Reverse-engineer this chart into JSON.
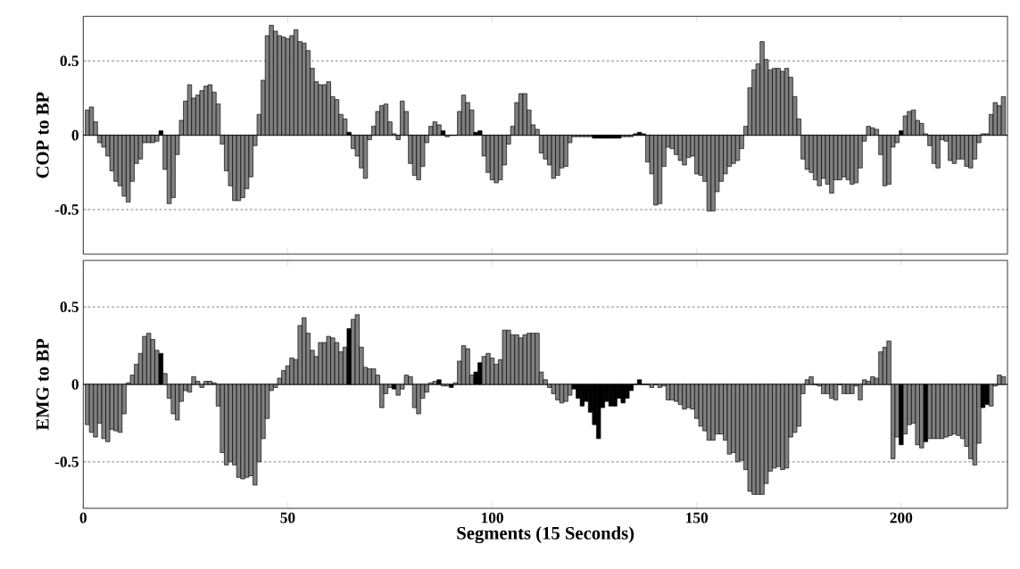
{
  "chart_data": [
    {
      "type": "bar",
      "ylabel": "COP to BP",
      "xlim": [
        0,
        226
      ],
      "xticks": [
        0,
        50,
        100,
        150,
        200
      ],
      "ylim": [
        -0.8,
        0.8
      ],
      "yticks": [
        -0.5,
        0,
        0.5
      ],
      "grid": "y",
      "tick_labels": "y",
      "ref_lines": [
        {
          "axis": "y",
          "value": 0,
          "color": "#000000"
        }
      ],
      "x": [
        1,
        2,
        3,
        4,
        5,
        6,
        7,
        8,
        9,
        10,
        11,
        12,
        13,
        14,
        15,
        16,
        17,
        18,
        19,
        20,
        21,
        22,
        23,
        24,
        25,
        26,
        27,
        28,
        29,
        30,
        31,
        32,
        33,
        34,
        35,
        36,
        37,
        38,
        39,
        40,
        41,
        42,
        43,
        44,
        45,
        46,
        47,
        48,
        49,
        50,
        51,
        52,
        53,
        54,
        55,
        56,
        57,
        58,
        59,
        60,
        61,
        62,
        63,
        64,
        65,
        66,
        67,
        68,
        69,
        70,
        71,
        72,
        73,
        74,
        75,
        76,
        77,
        78,
        79,
        80,
        81,
        82,
        83,
        84,
        85,
        86,
        87,
        88,
        89,
        90,
        91,
        92,
        93,
        94,
        95,
        96,
        97,
        98,
        99,
        100,
        101,
        102,
        103,
        104,
        105,
        106,
        107,
        108,
        109,
        110,
        111,
        112,
        113,
        114,
        115,
        116,
        117,
        118,
        119,
        120,
        121,
        122,
        123,
        124,
        125,
        126,
        127,
        128,
        129,
        130,
        131,
        132,
        133,
        134,
        135,
        136,
        137,
        138,
        139,
        140,
        141,
        142,
        143,
        144,
        145,
        146,
        147,
        148,
        149,
        150,
        151,
        152,
        153,
        154,
        155,
        156,
        157,
        158,
        159,
        160,
        161,
        162,
        163,
        164,
        165,
        166,
        167,
        168,
        169,
        170,
        171,
        172,
        173,
        174,
        175,
        176,
        177,
        178,
        179,
        180,
        181,
        182,
        183,
        184,
        185,
        186,
        187,
        188,
        189,
        190,
        191,
        192,
        193,
        194,
        195,
        196,
        197,
        198,
        199,
        200,
        201,
        202,
        203,
        204,
        205,
        206,
        207,
        208,
        209,
        210,
        211,
        212,
        213,
        214,
        215,
        216,
        217,
        218,
        219,
        220,
        221,
        222,
        223,
        224,
        225
      ],
      "values": [
        0.17,
        0.19,
        0.09,
        -0.05,
        -0.08,
        -0.14,
        -0.24,
        -0.31,
        -0.34,
        -0.41,
        -0.45,
        -0.31,
        -0.19,
        -0.16,
        -0.05,
        -0.05,
        -0.05,
        -0.04,
        0.03,
        -0.23,
        -0.46,
        -0.42,
        -0.13,
        0.1,
        0.23,
        0.34,
        0.25,
        0.27,
        0.3,
        0.33,
        0.34,
        0.29,
        0.21,
        -0.06,
        -0.24,
        -0.34,
        -0.44,
        -0.44,
        -0.42,
        -0.36,
        -0.28,
        -0.07,
        0.14,
        0.37,
        0.67,
        0.74,
        0.7,
        0.67,
        0.66,
        0.65,
        0.67,
        0.71,
        0.63,
        0.62,
        0.57,
        0.45,
        0.36,
        0.34,
        0.34,
        0.36,
        0.26,
        0.24,
        0.14,
        0.11,
        0.02,
        -0.09,
        -0.14,
        -0.22,
        -0.29,
        -0.03,
        0.06,
        0.16,
        0.2,
        0.21,
        0.09,
        0.01,
        -0.03,
        0.23,
        0.16,
        -0.19,
        -0.27,
        -0.3,
        -0.21,
        -0.05,
        0.06,
        0.09,
        0.07,
        0.03,
        -0.01,
        0,
        0,
        0.16,
        0.27,
        0.22,
        0.17,
        0.02,
        0.03,
        -0.14,
        -0.25,
        -0.3,
        -0.32,
        -0.3,
        -0.2,
        -0.06,
        0.06,
        0.22,
        0.28,
        0.28,
        0.17,
        0.07,
        0.04,
        -0.12,
        -0.16,
        -0.2,
        -0.29,
        -0.27,
        -0.22,
        -0.21,
        -0.05,
        -0.01,
        -0.01,
        -0.01,
        -0.01,
        -0.01,
        -0.02,
        -0.02,
        -0.02,
        -0.02,
        -0.02,
        -0.02,
        -0.02,
        -0.01,
        -0.01,
        -0.01,
        0.01,
        0.02,
        0.01,
        -0.18,
        -0.26,
        -0.47,
        -0.46,
        -0.21,
        -0.08,
        -0.09,
        -0.13,
        -0.17,
        -0.2,
        -0.15,
        -0.14,
        -0.26,
        -0.27,
        -0.31,
        -0.51,
        -0.51,
        -0.38,
        -0.31,
        -0.26,
        -0.21,
        -0.19,
        -0.17,
        -0.09,
        0.06,
        0.32,
        0.44,
        0.48,
        0.63,
        0.51,
        0.44,
        0.45,
        0.45,
        0.43,
        0.45,
        0.39,
        0.26,
        0.11,
        -0.16,
        -0.23,
        -0.25,
        -0.3,
        -0.34,
        -0.29,
        -0.33,
        -0.39,
        -0.3,
        -0.3,
        -0.28,
        -0.3,
        -0.33,
        -0.32,
        -0.22,
        -0.04,
        0.06,
        0.05,
        0.04,
        -0.13,
        -0.34,
        -0.33,
        -0.08,
        -0.05,
        0.03,
        0.13,
        0.16,
        0.17,
        0.1,
        0.08,
        0.01,
        -0.07,
        -0.19,
        -0.22,
        -0.03,
        -0.04,
        -0.17,
        -0.19,
        -0.16,
        -0.16,
        -0.21,
        -0.22,
        -0.16,
        -0.05,
        0.01,
        0.01,
        0.14,
        0.22,
        0.2,
        0.26
      ],
      "colors": [
        "#808080",
        "#808080",
        "#808080",
        "#808080",
        "#808080",
        "#808080",
        "#808080",
        "#808080",
        "#808080",
        "#808080",
        "#808080",
        "#808080",
        "#808080",
        "#808080",
        "#808080",
        "#808080",
        "#808080",
        "#808080",
        "#000000",
        "#808080",
        "#808080",
        "#808080",
        "#808080",
        "#808080",
        "#808080",
        "#808080",
        "#808080",
        "#808080",
        "#808080",
        "#808080",
        "#808080",
        "#808080",
        "#808080",
        "#808080",
        "#808080",
        "#808080",
        "#808080",
        "#808080",
        "#808080",
        "#808080",
        "#808080",
        "#808080",
        "#808080",
        "#808080",
        "#808080",
        "#808080",
        "#808080",
        "#808080",
        "#808080",
        "#808080",
        "#808080",
        "#808080",
        "#808080",
        "#808080",
        "#808080",
        "#808080",
        "#808080",
        "#808080",
        "#808080",
        "#808080",
        "#808080",
        "#808080",
        "#808080",
        "#808080",
        "#000000",
        "#808080",
        "#808080",
        "#808080",
        "#808080",
        "#808080",
        "#808080",
        "#808080",
        "#808080",
        "#808080",
        "#808080",
        "#808080",
        "#808080",
        "#808080",
        "#808080",
        "#808080",
        "#808080",
        "#808080",
        "#808080",
        "#808080",
        "#808080",
        "#808080",
        "#808080",
        "#000000",
        "#808080",
        "#808080",
        "#808080",
        "#808080",
        "#808080",
        "#808080",
        "#808080",
        "#000000",
        "#000000",
        "#808080",
        "#808080",
        "#808080",
        "#808080",
        "#808080",
        "#808080",
        "#808080",
        "#808080",
        "#808080",
        "#808080",
        "#808080",
        "#808080",
        "#808080",
        "#808080",
        "#808080",
        "#808080",
        "#808080",
        "#808080",
        "#808080",
        "#808080",
        "#808080",
        "#808080",
        "#808080",
        "#808080",
        "#808080",
        "#808080",
        "#808080",
        "#000000",
        "#000000",
        "#000000",
        "#000000",
        "#000000",
        "#000000",
        "#000000",
        "#808080",
        "#808080",
        "#808080",
        "#000000",
        "#000000",
        "#000000",
        "#808080",
        "#808080",
        "#808080",
        "#808080",
        "#808080",
        "#808080",
        "#808080",
        "#808080",
        "#808080",
        "#808080",
        "#808080",
        "#808080",
        "#808080",
        "#808080",
        "#808080",
        "#808080",
        "#808080",
        "#808080",
        "#808080",
        "#808080",
        "#808080",
        "#808080",
        "#808080",
        "#808080",
        "#808080",
        "#808080",
        "#808080",
        "#808080",
        "#808080",
        "#808080",
        "#808080",
        "#808080",
        "#808080",
        "#808080",
        "#808080",
        "#808080",
        "#808080",
        "#808080",
        "#808080",
        "#808080",
        "#808080",
        "#808080",
        "#808080",
        "#808080",
        "#808080",
        "#808080",
        "#808080",
        "#808080",
        "#808080",
        "#808080",
        "#808080",
        "#808080",
        "#808080",
        "#808080",
        "#808080",
        "#808080",
        "#808080",
        "#808080",
        "#808080",
        "#808080",
        "#808080",
        "#808080",
        "#000000",
        "#808080",
        "#808080",
        "#808080",
        "#808080",
        "#808080",
        "#808080",
        "#808080",
        "#808080",
        "#808080",
        "#808080",
        "#808080",
        "#808080",
        "#808080",
        "#808080",
        "#808080",
        "#808080",
        "#808080",
        "#808080",
        "#808080",
        "#808080",
        "#808080",
        "#808080",
        "#808080",
        "#808080",
        "#808080"
      ]
    },
    {
      "type": "bar",
      "ylabel": "EMG to BP",
      "xlabel": "Segments (15 Seconds)",
      "xlim": [
        0,
        226
      ],
      "xticks": [
        0,
        50,
        100,
        150,
        200
      ],
      "ylim": [
        -0.8,
        0.8
      ],
      "yticks": [
        -0.5,
        0,
        0.5
      ],
      "grid": "y",
      "ref_lines": [
        {
          "axis": "y",
          "value": 0,
          "color": "#000000"
        }
      ],
      "x": [
        1,
        2,
        3,
        4,
        5,
        6,
        7,
        8,
        9,
        10,
        11,
        12,
        13,
        14,
        15,
        16,
        17,
        18,
        19,
        20,
        21,
        22,
        23,
        24,
        25,
        26,
        27,
        28,
        29,
        30,
        31,
        32,
        33,
        34,
        35,
        36,
        37,
        38,
        39,
        40,
        41,
        42,
        43,
        44,
        45,
        46,
        47,
        48,
        49,
        50,
        51,
        52,
        53,
        54,
        55,
        56,
        57,
        58,
        59,
        60,
        61,
        62,
        63,
        64,
        65,
        66,
        67,
        68,
        69,
        70,
        71,
        72,
        73,
        74,
        75,
        76,
        77,
        78,
        79,
        80,
        81,
        82,
        83,
        84,
        85,
        86,
        87,
        88,
        89,
        90,
        91,
        92,
        93,
        94,
        95,
        96,
        97,
        98,
        99,
        100,
        101,
        102,
        103,
        104,
        105,
        106,
        107,
        108,
        109,
        110,
        111,
        112,
        113,
        114,
        115,
        116,
        117,
        118,
        119,
        120,
        121,
        122,
        123,
        124,
        125,
        126,
        127,
        128,
        129,
        130,
        131,
        132,
        133,
        134,
        135,
        136,
        137,
        138,
        139,
        140,
        141,
        142,
        143,
        144,
        145,
        146,
        147,
        148,
        149,
        150,
        151,
        152,
        153,
        154,
        155,
        156,
        157,
        158,
        159,
        160,
        161,
        162,
        163,
        164,
        165,
        166,
        167,
        168,
        169,
        170,
        171,
        172,
        173,
        174,
        175,
        176,
        177,
        178,
        179,
        180,
        181,
        182,
        183,
        184,
        185,
        186,
        187,
        188,
        189,
        190,
        191,
        192,
        193,
        194,
        195,
        196,
        197,
        198,
        199,
        200,
        201,
        202,
        203,
        204,
        205,
        206,
        207,
        208,
        209,
        210,
        211,
        212,
        213,
        214,
        215,
        216,
        217,
        218,
        219,
        220,
        221,
        222,
        223,
        224,
        225
      ],
      "values": [
        -0.26,
        -0.31,
        -0.34,
        -0.25,
        -0.35,
        -0.37,
        -0.29,
        -0.3,
        -0.31,
        -0.19,
        0.01,
        0.06,
        0.13,
        0.2,
        0.31,
        0.33,
        0.29,
        0.22,
        0.2,
        0.07,
        -0.09,
        -0.19,
        -0.23,
        -0.11,
        -0.04,
        -0.05,
        0.05,
        0.02,
        -0.02,
        0.02,
        0.02,
        0.01,
        -0.14,
        -0.44,
        -0.52,
        -0.5,
        -0.52,
        -0.6,
        -0.61,
        -0.6,
        -0.59,
        -0.65,
        -0.5,
        -0.35,
        -0.22,
        -0.04,
        -0.02,
        0.04,
        0.09,
        0.12,
        0.17,
        0.16,
        0.38,
        0.43,
        0.33,
        0.22,
        0.18,
        0.27,
        0.27,
        0.31,
        0.3,
        0.27,
        0.21,
        0.24,
        0.36,
        0.42,
        0.45,
        0.24,
        0.11,
        0.1,
        0.1,
        0.06,
        -0.15,
        -0.06,
        -0.02,
        -0.03,
        -0.07,
        -0.03,
        0.06,
        0.05,
        -0.15,
        -0.19,
        -0.09,
        -0.05,
        0.01,
        0.02,
        0.03,
        -0.01,
        -0.01,
        -0.02,
        0.01,
        0.15,
        0.25,
        0.23,
        0.06,
        0.08,
        0.14,
        0.18,
        0.2,
        0.17,
        0.13,
        0.16,
        0.35,
        0.35,
        0.32,
        0.32,
        0.3,
        0.32,
        0.33,
        0.33,
        0.33,
        0.08,
        0.03,
        -0.02,
        -0.06,
        -0.1,
        -0.12,
        -0.11,
        -0.07,
        -0.03,
        -0.09,
        -0.14,
        -0.11,
        -0.18,
        -0.26,
        -0.35,
        -0.15,
        -0.11,
        -0.14,
        -0.14,
        -0.09,
        -0.12,
        -0.09,
        -0.04,
        0,
        0.03,
        0,
        0,
        -0.02,
        0,
        -0.02,
        -0.01,
        -0.1,
        -0.1,
        -0.11,
        -0.13,
        -0.16,
        -0.15,
        -0.16,
        -0.22,
        -0.27,
        -0.3,
        -0.36,
        -0.36,
        -0.32,
        -0.32,
        -0.36,
        -0.45,
        -0.44,
        -0.5,
        -0.49,
        -0.55,
        -0.69,
        -0.71,
        -0.71,
        -0.71,
        -0.64,
        -0.56,
        -0.54,
        -0.53,
        -0.55,
        -0.54,
        -0.34,
        -0.31,
        -0.27,
        -0.06,
        0.03,
        0.05,
        0,
        -0.01,
        -0.06,
        -0.06,
        -0.09,
        -0.1,
        0,
        -0.06,
        -0.06,
        -0.06,
        -0.01,
        -0.1,
        0.03,
        0.02,
        0.05,
        0.04,
        0.21,
        0.24,
        0.28,
        -0.48,
        -0.34,
        -0.39,
        -0.32,
        -0.26,
        -0.25,
        -0.39,
        -0.41,
        -0.37,
        -0.35,
        -0.35,
        -0.35,
        -0.35,
        -0.34,
        -0.33,
        -0.32,
        -0.33,
        -0.35,
        -0.4,
        -0.48,
        -0.52,
        -0.38,
        -0.15,
        -0.13,
        -0.14,
        -0.01,
        0.06,
        0.05
      ],
      "colors": [
        "#808080",
        "#808080",
        "#808080",
        "#808080",
        "#808080",
        "#808080",
        "#808080",
        "#808080",
        "#808080",
        "#808080",
        "#808080",
        "#808080",
        "#808080",
        "#808080",
        "#808080",
        "#808080",
        "#808080",
        "#808080",
        "#000000",
        "#808080",
        "#808080",
        "#808080",
        "#808080",
        "#808080",
        "#808080",
        "#808080",
        "#808080",
        "#808080",
        "#808080",
        "#808080",
        "#808080",
        "#808080",
        "#808080",
        "#808080",
        "#808080",
        "#808080",
        "#808080",
        "#808080",
        "#808080",
        "#808080",
        "#808080",
        "#808080",
        "#808080",
        "#808080",
        "#808080",
        "#808080",
        "#808080",
        "#808080",
        "#808080",
        "#808080",
        "#808080",
        "#808080",
        "#808080",
        "#808080",
        "#808080",
        "#808080",
        "#808080",
        "#808080",
        "#808080",
        "#808080",
        "#808080",
        "#808080",
        "#808080",
        "#808080",
        "#000000",
        "#808080",
        "#808080",
        "#808080",
        "#808080",
        "#808080",
        "#808080",
        "#808080",
        "#808080",
        "#808080",
        "#808080",
        "#000000",
        "#808080",
        "#808080",
        "#808080",
        "#808080",
        "#808080",
        "#808080",
        "#808080",
        "#808080",
        "#808080",
        "#808080",
        "#000000",
        "#808080",
        "#808080",
        "#000000",
        "#808080",
        "#808080",
        "#808080",
        "#808080",
        "#808080",
        "#000000",
        "#000000",
        "#808080",
        "#808080",
        "#808080",
        "#808080",
        "#808080",
        "#808080",
        "#808080",
        "#808080",
        "#808080",
        "#808080",
        "#808080",
        "#808080",
        "#808080",
        "#808080",
        "#808080",
        "#808080",
        "#808080",
        "#808080",
        "#808080",
        "#808080",
        "#808080",
        "#808080",
        "#000000",
        "#000000",
        "#000000",
        "#000000",
        "#000000",
        "#000000",
        "#000000",
        "#000000",
        "#000000",
        "#000000",
        "#000000",
        "#000000",
        "#000000",
        "#000000",
        "#000000",
        "#808080",
        "#000000",
        "#808080",
        "#808080",
        "#808080",
        "#808080",
        "#808080",
        "#808080",
        "#808080",
        "#808080",
        "#808080",
        "#808080",
        "#808080",
        "#808080",
        "#808080",
        "#808080",
        "#808080",
        "#808080",
        "#808080",
        "#808080",
        "#808080",
        "#808080",
        "#808080",
        "#808080",
        "#808080",
        "#808080",
        "#808080",
        "#808080",
        "#808080",
        "#808080",
        "#808080",
        "#808080",
        "#808080",
        "#808080",
        "#808080",
        "#808080",
        "#808080",
        "#808080",
        "#808080",
        "#808080",
        "#808080",
        "#808080",
        "#808080",
        "#808080",
        "#808080",
        "#808080",
        "#808080",
        "#808080",
        "#808080",
        "#808080",
        "#808080",
        "#808080",
        "#808080",
        "#808080",
        "#808080",
        "#808080",
        "#808080",
        "#808080",
        "#808080",
        "#808080",
        "#808080",
        "#808080",
        "#808080",
        "#808080",
        "#808080",
        "#000000",
        "#808080",
        "#808080",
        "#808080",
        "#808080",
        "#808080",
        "#000000",
        "#808080",
        "#808080",
        "#808080",
        "#808080",
        "#808080",
        "#808080",
        "#808080",
        "#808080",
        "#808080",
        "#808080",
        "#808080",
        "#808080",
        "#808080",
        "#000000",
        "#000000",
        "#808080",
        "#808080",
        "#808080",
        "#808080"
      ]
    }
  ]
}
